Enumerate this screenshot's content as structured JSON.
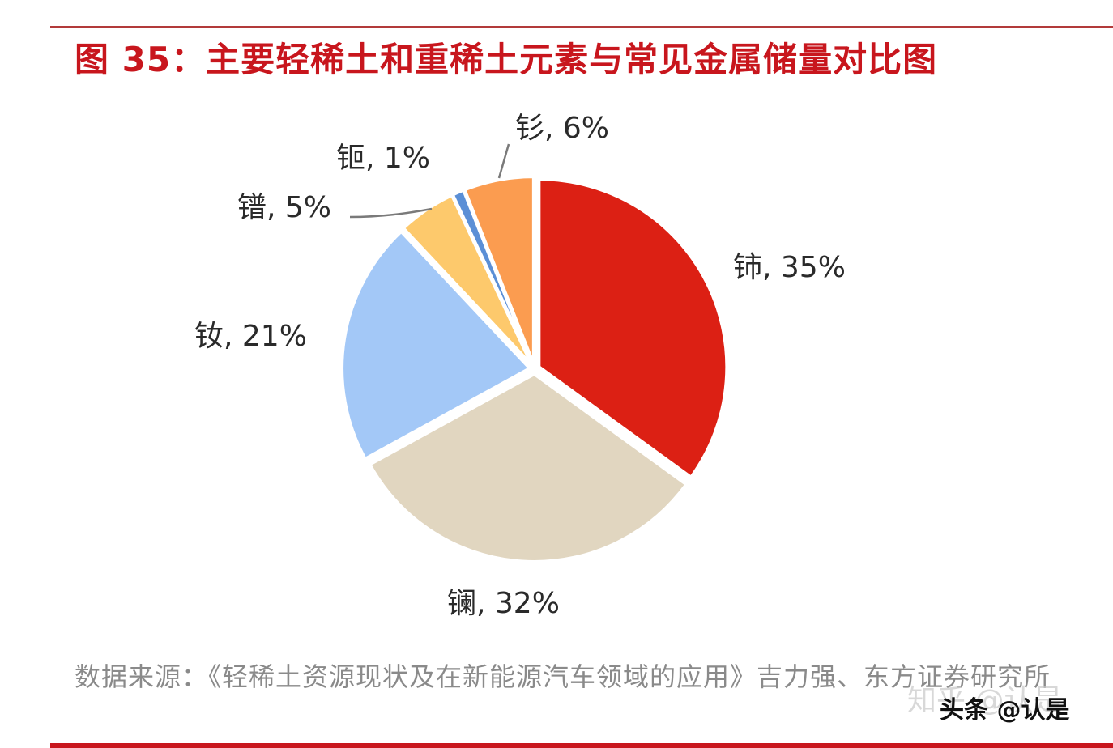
{
  "header": {
    "title": "图 35：主要轻稀土和重稀土元素与常见金属储量对比图"
  },
  "chart_data": {
    "type": "pie",
    "title": "图 35：主要轻稀土和重稀土元素与常见金属储量对比图",
    "categories": [
      "铈",
      "镧",
      "钕",
      "镨",
      "钷",
      "钐"
    ],
    "values": [
      35,
      32,
      21,
      5,
      1,
      6
    ],
    "unit": "%",
    "labels": [
      "铈, 35%",
      "镧, 32%",
      "钕, 21%",
      "镨, 5%",
      "钷, 1%",
      "钐, 6%"
    ],
    "colors": [
      "#dc2014",
      "#e1d6c0",
      "#a3c8f7",
      "#fdc96c",
      "#5b8fd6",
      "#fb9c50"
    ],
    "start_angle": "12 o'clock",
    "direction": "clockwise",
    "exploded": true,
    "legend": "none (data labels with leader lines)"
  },
  "labels": {
    "ce": "铈, 35%",
    "la": "镧, 32%",
    "nd": "钕, 21%",
    "pr": "镨, 5%",
    "pm": "钷, 1%",
    "sm": "钐, 6%"
  },
  "footer": {
    "source": "数据来源：《轻稀土资源现状及在新能源汽车领域的应用》吉力强、东方证券研究所",
    "watermark_faint": "知乎 @认是",
    "watermark": "头条 @认是"
  }
}
